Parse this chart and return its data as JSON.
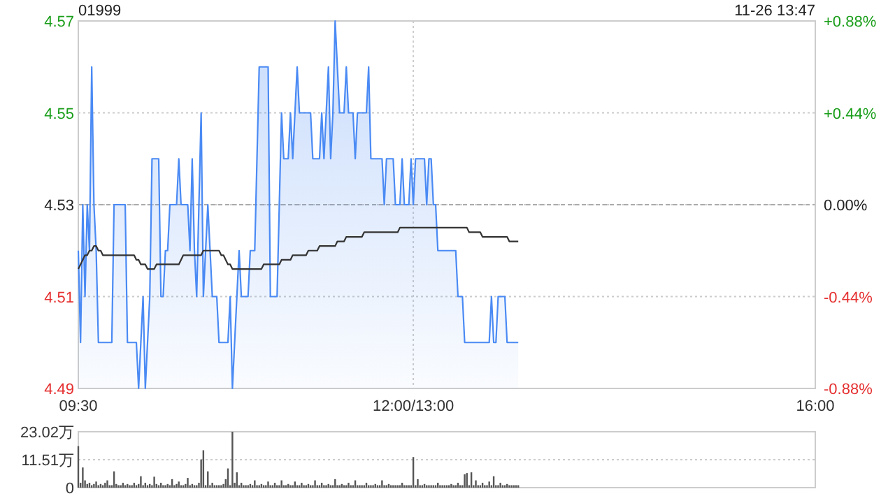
{
  "chart_data": [
    {
      "type": "line",
      "title": "01999",
      "annotations": [
        "11-26 13:47"
      ],
      "categories": [
        "09:30",
        null,
        null,
        null,
        null,
        null,
        null,
        null,
        null,
        null,
        null,
        null,
        null,
        null,
        null,
        null,
        null,
        null,
        null,
        null,
        null,
        null,
        null,
        null,
        null,
        null,
        null,
        null,
        null,
        null,
        null,
        null,
        null,
        null,
        null,
        null,
        null,
        null,
        null,
        null,
        null,
        null,
        null,
        null,
        null,
        null,
        null,
        null,
        null,
        null,
        null,
        null,
        null,
        null,
        null,
        null,
        null,
        null,
        null,
        null,
        null,
        null,
        null,
        null,
        null,
        null,
        null,
        null,
        null,
        null,
        null,
        null,
        null,
        null,
        null,
        null,
        null,
        null,
        null,
        null,
        null,
        null,
        null,
        null,
        null,
        null,
        null,
        null,
        null,
        null,
        null,
        null,
        null,
        null,
        null,
        null,
        null,
        null,
        null,
        null,
        null,
        null,
        null,
        null,
        null,
        null,
        null,
        null,
        null,
        null,
        null,
        null,
        null,
        null,
        null,
        null,
        null,
        null,
        null,
        null,
        null,
        null,
        null,
        null,
        null,
        null,
        null,
        null,
        null,
        null,
        null,
        null,
        null,
        null,
        null,
        null,
        null,
        null,
        null,
        null,
        null,
        null,
        null,
        null,
        null,
        null,
        null,
        null,
        null,
        null,
        "12:00/13:00",
        null,
        null,
        null,
        null,
        null,
        null,
        null,
        null,
        null,
        null,
        null,
        null,
        null,
        null,
        null,
        null,
        null,
        null,
        null,
        null,
        null,
        null,
        null,
        null,
        null,
        null,
        null,
        null,
        null,
        null,
        null,
        null,
        null,
        null,
        null,
        null,
        null,
        null,
        null,
        null,
        null,
        null,
        null,
        null,
        null,
        null,
        null,
        null,
        null,
        null,
        null,
        null,
        null,
        null,
        null,
        null,
        null,
        null,
        null,
        null,
        null,
        null,
        null,
        null,
        null,
        null,
        null,
        null,
        null,
        null,
        null,
        null,
        null,
        null,
        null,
        null,
        null,
        null,
        null,
        null,
        null,
        null,
        null,
        null,
        null,
        null,
        null,
        null,
        null,
        null,
        null,
        null,
        null,
        null,
        null,
        null,
        null,
        null,
        null,
        null,
        null,
        null,
        null,
        null,
        null,
        null,
        null,
        null,
        null,
        null,
        null,
        null,
        null,
        null,
        null,
        null,
        null,
        null,
        null,
        null,
        null,
        null,
        null,
        null,
        null,
        null,
        null,
        null,
        null,
        null,
        null,
        null,
        null,
        null,
        null,
        null,
        null,
        null,
        null,
        null,
        null,
        null,
        null,
        null,
        null,
        null,
        null,
        null,
        null,
        null,
        null,
        null,
        null,
        null,
        null,
        null,
        null,
        null,
        null,
        null,
        null,
        null,
        null,
        null,
        null,
        null,
        null,
        null,
        null,
        null,
        null,
        null,
        null,
        null,
        null,
        null,
        null,
        null,
        null,
        "16:00"
      ],
      "ylim": [
        4.49,
        4.57
      ],
      "yticks": [
        4.49,
        4.51,
        4.53,
        4.55,
        4.57
      ],
      "y2lim": [
        -0.88,
        0.88
      ],
      "y2ticks": [
        {
          "value": -0.88,
          "label": "-0.88%"
        },
        {
          "value": -0.44,
          "label": "-0.44%"
        },
        {
          "value": 0,
          "label": "0.00%"
        },
        {
          "value": 0.44,
          "label": "+0.44%"
        },
        {
          "value": 0.88,
          "label": "+0.88%"
        }
      ],
      "grid": true,
      "ref_lines": [
        {
          "axis": "y",
          "value": 4.53,
          "line_style": "dashed",
          "color": "#aaaaaa"
        }
      ],
      "series": [
        {
          "type": "area",
          "color": "#4a8af4",
          "values": [
            4.52,
            4.5,
            4.53,
            4.51,
            4.53,
            4.52,
            4.56,
            4.53,
            4.52,
            4.5,
            4.5,
            4.5,
            4.5,
            4.5,
            4.5,
            4.5,
            4.53,
            4.53,
            4.53,
            4.53,
            4.53,
            4.53,
            4.5,
            4.5,
            4.5,
            4.5,
            4.5,
            4.49,
            4.5,
            4.51,
            4.49,
            4.5,
            4.51,
            4.54,
            4.54,
            4.54,
            4.54,
            4.51,
            4.51,
            4.52,
            4.52,
            4.53,
            4.53,
            4.53,
            4.53,
            4.54,
            4.53,
            4.53,
            4.53,
            4.53,
            4.52,
            4.54,
            4.52,
            4.51,
            4.53,
            4.55,
            4.51,
            4.52,
            4.53,
            4.52,
            4.51,
            4.51,
            4.51,
            4.5,
            4.5,
            4.5,
            4.5,
            4.5,
            4.51,
            4.49,
            4.5,
            4.51,
            4.52,
            4.51,
            4.51,
            4.51,
            4.51,
            4.52,
            4.52,
            4.52,
            4.54,
            4.56,
            4.56,
            4.56,
            4.56,
            4.56,
            4.51,
            4.51,
            4.51,
            4.51,
            4.53,
            4.55,
            4.54,
            4.54,
            4.54,
            4.55,
            4.54,
            4.55,
            4.56,
            4.55,
            4.55,
            4.55,
            4.55,
            4.55,
            4.55,
            4.54,
            4.54,
            4.54,
            4.54,
            4.55,
            4.54,
            4.55,
            4.56,
            4.54,
            4.55,
            4.57,
            4.56,
            4.55,
            4.55,
            4.55,
            4.56,
            4.55,
            4.55,
            4.55,
            4.54,
            4.55,
            4.55,
            4.55,
            4.55,
            4.55,
            4.56,
            4.54,
            4.54,
            4.54,
            4.54,
            4.54,
            4.54,
            4.53,
            4.54,
            4.54,
            4.54,
            4.54,
            4.53,
            4.53,
            4.53,
            4.54,
            4.53,
            4.53,
            4.53,
            4.54,
            4.53,
            4.54,
            4.54,
            4.54,
            4.54,
            4.54,
            4.53,
            4.54,
            4.54,
            4.53,
            4.53,
            4.52,
            4.52,
            4.52,
            4.52,
            4.52,
            4.52,
            4.52,
            4.52,
            4.52,
            4.51,
            4.51,
            4.51,
            4.5,
            4.5,
            4.5,
            4.5,
            4.5,
            4.5,
            4.5,
            4.5,
            4.5,
            4.5,
            4.5,
            4.5,
            4.51,
            4.5,
            4.5,
            4.51,
            4.51,
            4.51,
            4.51,
            4.5,
            4.5,
            4.5,
            4.5,
            4.5,
            4.5,
            null,
            null,
            null,
            null,
            null,
            null,
            null,
            null,
            null,
            null,
            null,
            null,
            null,
            null,
            null,
            null,
            null,
            null,
            null,
            null,
            null,
            null,
            null,
            null,
            null,
            null,
            null,
            null,
            null,
            null,
            null,
            null,
            null,
            null,
            null,
            null,
            null,
            null,
            null,
            null,
            null,
            null,
            null,
            null,
            null,
            null,
            null,
            null,
            null,
            null,
            null,
            null,
            null,
            null,
            null,
            null,
            null,
            null,
            null,
            null,
            null,
            null,
            null,
            null,
            null,
            null,
            null,
            null,
            null,
            null,
            null,
            null,
            null,
            null,
            null,
            null,
            null,
            null,
            null,
            null,
            null,
            null,
            null,
            null,
            null,
            null,
            null,
            null,
            null,
            null,
            null,
            null,
            null,
            null,
            null,
            null,
            null,
            null,
            null,
            null,
            null,
            null,
            null,
            null,
            null,
            null,
            null,
            null,
            null,
            null,
            null,
            null,
            null,
            null,
            null,
            null,
            null,
            null,
            null,
            null,
            null,
            null,
            null,
            null,
            null,
            null,
            null,
            null,
            null,
            null,
            null,
            null,
            null
          ]
        },
        {
          "type": "line",
          "color": "#333333",
          "values": [
            4.516,
            4.517,
            4.518,
            4.519,
            4.519,
            4.52,
            4.52,
            4.521,
            4.521,
            4.52,
            4.52,
            4.519,
            4.519,
            4.519,
            4.519,
            4.519,
            4.519,
            4.519,
            4.519,
            4.519,
            4.519,
            4.519,
            4.519,
            4.519,
            4.519,
            4.519,
            4.518,
            4.518,
            4.517,
            4.517,
            4.517,
            4.516,
            4.516,
            4.516,
            4.516,
            4.517,
            4.517,
            4.517,
            4.517,
            4.517,
            4.517,
            4.517,
            4.517,
            4.517,
            4.517,
            4.517,
            4.518,
            4.519,
            4.519,
            4.519,
            4.519,
            4.519,
            4.519,
            4.519,
            4.519,
            4.519,
            4.52,
            4.52,
            4.52,
            4.52,
            4.52,
            4.52,
            4.52,
            4.52,
            4.519,
            4.519,
            4.518,
            4.517,
            4.517,
            4.516,
            4.516,
            4.516,
            4.516,
            4.516,
            4.516,
            4.516,
            4.516,
            4.516,
            4.516,
            4.516,
            4.516,
            4.516,
            4.516,
            4.517,
            4.517,
            4.517,
            4.517,
            4.517,
            4.517,
            4.517,
            4.517,
            4.518,
            4.518,
            4.518,
            4.518,
            4.518,
            4.519,
            4.519,
            4.519,
            4.519,
            4.519,
            4.519,
            4.519,
            4.52,
            4.52,
            4.52,
            4.52,
            4.52,
            4.521,
            4.521,
            4.521,
            4.521,
            4.521,
            4.521,
            4.521,
            4.521,
            4.522,
            4.522,
            4.522,
            4.522,
            4.523,
            4.523,
            4.523,
            4.523,
            4.523,
            4.523,
            4.523,
            4.523,
            4.524,
            4.524,
            4.524,
            4.524,
            4.524,
            4.524,
            4.524,
            4.524,
            4.524,
            4.524,
            4.524,
            4.524,
            4.524,
            4.524,
            4.524,
            4.524,
            4.525,
            4.525,
            4.525,
            4.525,
            4.525,
            4.525,
            4.525,
            4.525,
            4.525,
            4.525,
            4.525,
            4.525,
            4.525,
            4.525,
            4.525,
            4.525,
            4.525,
            4.525,
            4.525,
            4.525,
            4.525,
            4.525,
            4.525,
            4.525,
            4.525,
            4.525,
            4.525,
            4.525,
            4.525,
            4.525,
            4.525,
            4.524,
            4.524,
            4.524,
            4.524,
            4.524,
            4.524,
            4.523,
            4.523,
            4.523,
            4.523,
            4.523,
            4.523,
            4.523,
            4.523,
            4.523,
            4.523,
            4.523,
            4.523,
            4.522,
            4.522,
            4.522,
            4.522,
            4.522,
            null,
            null,
            null,
            null,
            null,
            null,
            null,
            null,
            null,
            null,
            null,
            null,
            null,
            null,
            null,
            null,
            null,
            null,
            null,
            null,
            null,
            null,
            null,
            null,
            null,
            null,
            null,
            null,
            null,
            null,
            null,
            null,
            null,
            null,
            null,
            null,
            null,
            null,
            null,
            null,
            null,
            null,
            null,
            null,
            null,
            null,
            null,
            null,
            null,
            null,
            null,
            null,
            null,
            null,
            null,
            null,
            null,
            null,
            null,
            null,
            null,
            null,
            null,
            null,
            null,
            null,
            null,
            null,
            null,
            null,
            null,
            null,
            null,
            null,
            null,
            null,
            null,
            null,
            null,
            null,
            null,
            null,
            null,
            null,
            null,
            null,
            null,
            null,
            null,
            null,
            null,
            null,
            null,
            null,
            null,
            null,
            null,
            null,
            null,
            null,
            null,
            null,
            null,
            null,
            null,
            null,
            null,
            null,
            null,
            null,
            null,
            null,
            null,
            null,
            null,
            null,
            null,
            null,
            null,
            null,
            null,
            null,
            null,
            null,
            null,
            null,
            null,
            null,
            null,
            null,
            null,
            null,
            null
          ]
        }
      ]
    },
    {
      "type": "bar",
      "color": "#555555",
      "tick_labels": "y",
      "grid": "y",
      "ylim": [
        0,
        23.02
      ],
      "yticks": [
        0,
        {
          "value": 11.51,
          "label": "11.51万"
        },
        {
          "value": 23.02,
          "label": "23.02万"
        }
      ],
      "categories": [
        null,
        null,
        null,
        null,
        null,
        null,
        null,
        null,
        null,
        null,
        null,
        null,
        null,
        null,
        null,
        null,
        null,
        null,
        null,
        null,
        null,
        null,
        null,
        null,
        null,
        null,
        null,
        null,
        null,
        null,
        null,
        null,
        null,
        null,
        null,
        null,
        null,
        null,
        null,
        null,
        null,
        null,
        null,
        null,
        null,
        null,
        null,
        null,
        null,
        null,
        null,
        null,
        null,
        null,
        null,
        null,
        null,
        null,
        null,
        null,
        null,
        null,
        null,
        null,
        null,
        null,
        null,
        null,
        null,
        null,
        null,
        null,
        null,
        null,
        null,
        null,
        null,
        null,
        null,
        null,
        null,
        null,
        null,
        null,
        null,
        null,
        null,
        null,
        null,
        null,
        null,
        null,
        null,
        null,
        null,
        null,
        null,
        null,
        null,
        null,
        null,
        null,
        null,
        null,
        null,
        null,
        null,
        null,
        null,
        null,
        null,
        null,
        null,
        null,
        null,
        null,
        null,
        null,
        null,
        null,
        null,
        null,
        null,
        null,
        null,
        null,
        null,
        null,
        null,
        null,
        null,
        null,
        null,
        null,
        null,
        null,
        null,
        null,
        null,
        null,
        null,
        null,
        null,
        null,
        null,
        null,
        null,
        null,
        null,
        null,
        null,
        null,
        null,
        null,
        null,
        null,
        null,
        null,
        null,
        null,
        null,
        null,
        null,
        null,
        null,
        null,
        null,
        null,
        null,
        null,
        null,
        null,
        null,
        null,
        null,
        null,
        null,
        null,
        null,
        null,
        null,
        null,
        null,
        null,
        null,
        null,
        null,
        null,
        null,
        null,
        null,
        null,
        null,
        null,
        null,
        null,
        null,
        null,
        null,
        null,
        null,
        null,
        null,
        null,
        null,
        null,
        null,
        null,
        null,
        null,
        null,
        null,
        null,
        null,
        null,
        null,
        null,
        null,
        null,
        null,
        null,
        null,
        null,
        null,
        null,
        null,
        null,
        null,
        null,
        null,
        null,
        null,
        null,
        null,
        null,
        null,
        null,
        null,
        null,
        null,
        null,
        null,
        null,
        null,
        null,
        null,
        null,
        null,
        null,
        null,
        null,
        null,
        null,
        null,
        null,
        null,
        null,
        null,
        null,
        null,
        null,
        null,
        null,
        null,
        null,
        null,
        null,
        null,
        null,
        null,
        null,
        null,
        null,
        null,
        null,
        null,
        null,
        null,
        null,
        null,
        null,
        null,
        null,
        null,
        null,
        null,
        null,
        null,
        null,
        null,
        null,
        null,
        null,
        null,
        null,
        null,
        null,
        null,
        null,
        null,
        null,
        null,
        null,
        null,
        null,
        null,
        null,
        null,
        null,
        null,
        null,
        null,
        null,
        null,
        null,
        null,
        null,
        null,
        null,
        null,
        null,
        null,
        null,
        null,
        null,
        null,
        null,
        null,
        null,
        null,
        null
      ],
      "values": [
        17.1,
        2,
        8.3,
        3,
        1.5,
        2,
        1,
        1.5,
        2.5,
        1,
        1.5,
        1,
        2,
        3,
        1,
        1,
        6.7,
        1.5,
        1,
        1,
        2,
        1,
        1.5,
        1,
        1,
        2,
        1,
        1.5,
        4.7,
        1,
        2,
        1,
        1.5,
        1,
        4.5,
        1.5,
        1,
        2,
        1,
        1,
        1.5,
        1,
        3.5,
        1,
        1.5,
        2.5,
        1,
        1,
        1.5,
        4,
        1,
        1.5,
        1,
        1,
        2,
        11.6,
        15.4,
        1,
        6.7,
        1,
        2,
        1,
        1,
        1,
        1,
        1.5,
        3.5,
        7.9,
        1,
        23.02,
        2,
        6.3,
        1,
        2,
        1,
        1,
        1,
        1.5,
        1,
        3,
        1,
        1,
        1.5,
        1,
        1,
        2.5,
        1,
        1,
        2,
        1,
        1,
        3,
        1,
        1,
        1.5,
        1,
        1,
        2.5,
        1,
        1,
        2,
        1,
        1,
        1.5,
        1,
        1,
        3,
        1,
        1,
        2,
        1,
        1,
        1.5,
        1,
        1,
        3.5,
        1,
        1,
        1.5,
        1,
        1,
        2,
        1,
        1,
        3,
        1,
        1,
        1,
        1,
        2,
        1,
        1,
        1,
        1.5,
        1,
        1,
        3,
        1,
        1,
        1.5,
        1,
        1,
        1,
        1,
        1,
        2,
        1,
        1,
        1,
        1,
        12.6,
        1,
        3.5,
        1,
        1,
        1.5,
        1,
        1,
        1,
        1,
        1,
        2,
        1,
        1,
        1,
        1,
        1,
        1.5,
        1,
        1,
        2,
        1,
        1,
        5.5,
        6,
        1,
        6.3,
        1,
        3,
        1,
        1,
        2,
        1,
        1,
        2.5,
        1,
        4.7,
        1,
        1,
        2,
        1,
        1,
        1.5,
        1,
        1,
        1,
        1,
        1,
        null,
        null,
        null,
        null,
        null,
        null,
        null,
        null,
        null,
        null,
        null,
        null,
        null,
        null,
        null,
        null,
        null,
        null,
        null,
        null,
        null,
        null,
        null,
        null,
        null,
        null,
        null,
        null,
        null,
        null,
        null,
        null,
        null,
        null,
        null,
        null,
        null,
        null,
        null,
        null,
        null,
        null,
        null,
        null,
        null,
        null,
        null,
        null,
        null,
        null,
        null,
        null,
        null,
        null,
        null,
        null,
        null,
        null,
        null,
        null,
        null,
        null,
        null,
        null,
        null,
        null,
        null,
        null,
        null,
        null,
        null,
        null,
        null,
        null,
        null,
        null,
        null,
        null,
        null,
        null,
        null,
        null,
        null,
        null,
        null,
        null,
        null,
        null,
        null,
        null,
        null,
        null,
        null,
        null,
        null,
        null,
        null,
        null,
        null,
        null,
        null,
        null,
        null,
        null,
        null,
        null,
        null,
        null,
        null,
        null,
        null,
        null,
        null,
        null,
        null,
        null,
        null,
        null,
        null,
        null,
        null,
        null,
        null,
        null,
        null,
        null,
        null,
        null,
        null,
        null,
        null,
        null,
        null
      ]
    }
  ]
}
